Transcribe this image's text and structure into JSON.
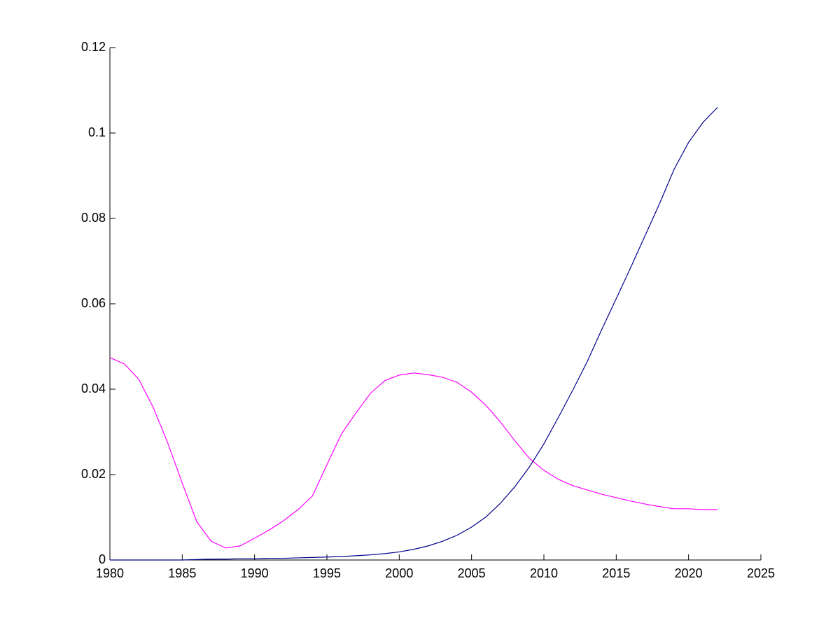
{
  "chart_data": {
    "type": "line",
    "x": [
      1980,
      1981,
      1982,
      1983,
      1984,
      1985,
      1986,
      1987,
      1988,
      1989,
      1990,
      1991,
      1992,
      1993,
      1994,
      1995,
      1996,
      1997,
      1998,
      1999,
      2000,
      2001,
      2002,
      2003,
      2004,
      2005,
      2006,
      2007,
      2008,
      2009,
      2010,
      2011,
      2012,
      2013,
      2014,
      2015,
      2016,
      2017,
      2018,
      2019,
      2020,
      2021,
      2022
    ],
    "series": [
      {
        "color": "#ff00ff",
        "values": [
          0.0474,
          0.0459,
          0.0423,
          0.0357,
          0.0274,
          0.018,
          0.009,
          0.0044,
          0.0028,
          0.0033,
          0.0051,
          0.007,
          0.0092,
          0.0118,
          0.015,
          0.0223,
          0.0295,
          0.0344,
          0.039,
          0.042,
          0.0433,
          0.0438,
          0.0434,
          0.0428,
          0.0416,
          0.0393,
          0.0362,
          0.0323,
          0.0279,
          0.0238,
          0.021,
          0.0189,
          0.0174,
          0.0164,
          0.0154,
          0.0146,
          0.0138,
          0.0131,
          0.0125,
          0.012,
          0.012,
          0.0118,
          0.0118
        ]
      },
      {
        "color": "#00008b",
        "values": [
          0,
          0,
          0,
          0,
          0,
          0,
          0.0001,
          0.0002,
          0.0002,
          0.0003,
          0.0003,
          0.0004,
          0.0004,
          0.0005,
          0.0006,
          0.0007,
          0.0008,
          0.001,
          0.0012,
          0.0015,
          0.0019,
          0.0025,
          0.0033,
          0.0044,
          0.0058,
          0.0077,
          0.0101,
          0.0133,
          0.0172,
          0.0218,
          0.0272,
          0.0334,
          0.0398,
          0.0465,
          0.054,
          0.0612,
          0.0685,
          0.076,
          0.0835,
          0.0915,
          0.0978,
          0.1025,
          0.106
        ]
      }
    ],
    "xlim": [
      1980,
      2025
    ],
    "xticks": [
      1980,
      1985,
      1990,
      1995,
      2000,
      2005,
      2010,
      2015,
      2020,
      2025
    ],
    "ylim": [
      0,
      0.12
    ],
    "yticks": [
      0,
      0.02,
      0.04,
      0.06,
      0.08,
      0.1,
      0.12
    ]
  }
}
